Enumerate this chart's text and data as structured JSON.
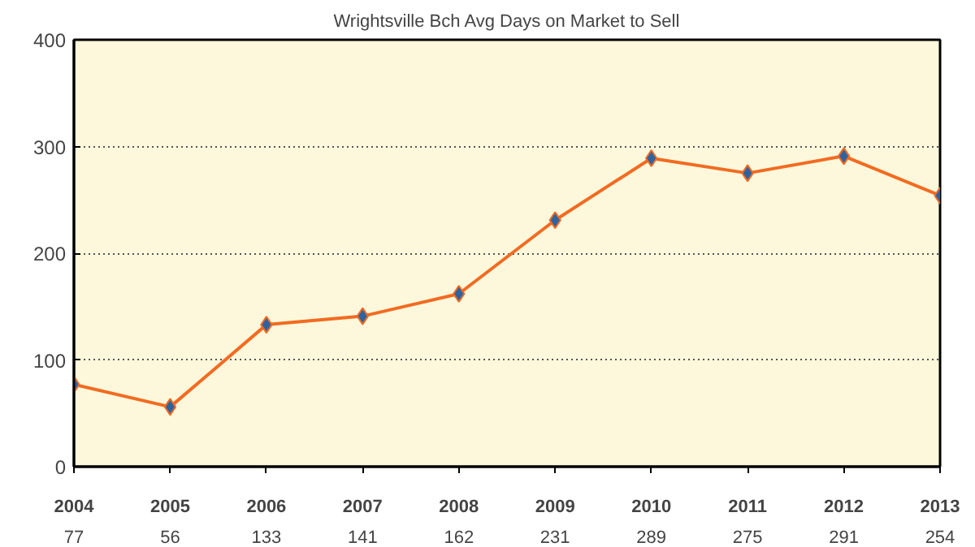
{
  "chart_data": {
    "type": "line",
    "title": "Wrightsville Bch Avg Days on Market to Sell",
    "categories": [
      "2004",
      "2005",
      "2006",
      "2007",
      "2008",
      "2009",
      "2010",
      "2011",
      "2012",
      "2013"
    ],
    "series": [
      {
        "color": "#f26b21",
        "colors": [
          "#2f63a0",
          "#2f63a0",
          "#2f63a0",
          "#2f63a0",
          "#2f63a0",
          "#2f63a0",
          "#2f63a0",
          "#2f63a0",
          "#2f63a0",
          "#2f63a0"
        ],
        "values": [
          77,
          56,
          133,
          141,
          162,
          231,
          289,
          275,
          291,
          254
        ]
      }
    ],
    "ylim": [
      0,
      400
    ],
    "yticks": [
      0,
      100,
      200,
      300,
      400
    ],
    "grid": "y",
    "marker": "diamond",
    "line_style": "solid",
    "data_labels": true
  }
}
